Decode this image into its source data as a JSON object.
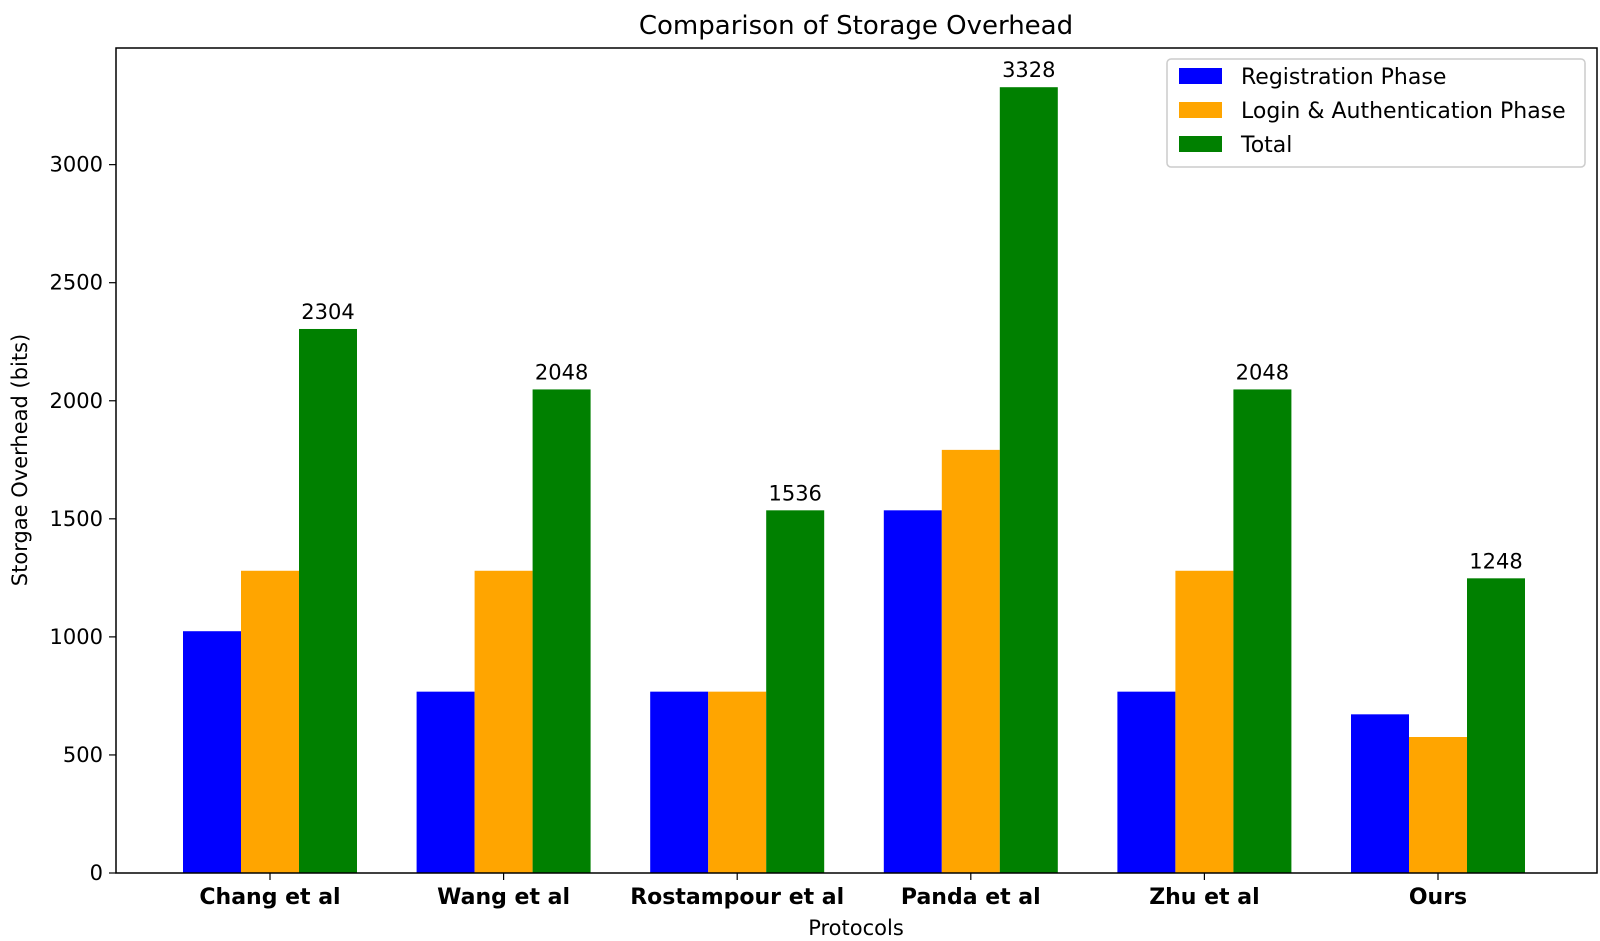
{
  "chart_data": {
    "type": "bar",
    "title": "Comparison of Storage Overhead",
    "xlabel": "Protocols",
    "ylabel": "Storgae Overhead (bits)",
    "categories": [
      "Chang et al",
      "Wang et al",
      "Rostampour et al",
      "Panda et al",
      "Zhu et al",
      "Ours"
    ],
    "series": [
      {
        "name": "Registration Phase",
        "color": "#0000ff",
        "values": [
          1024,
          768,
          768,
          1536,
          768,
          672
        ]
      },
      {
        "name": "Login & Authentication Phase",
        "color": "#ffa500",
        "values": [
          1280,
          1280,
          768,
          1792,
          1280,
          576
        ]
      },
      {
        "name": "Total",
        "color": "#008000",
        "values": [
          2304,
          2048,
          1536,
          3328,
          2048,
          1248
        ]
      }
    ],
    "data_labels_series": "Total",
    "yticks": [
      0,
      500,
      1000,
      1500,
      2000,
      2500,
      3000
    ],
    "ylim": [
      0,
      3494
    ],
    "legend": "top-right",
    "grid": false
  }
}
